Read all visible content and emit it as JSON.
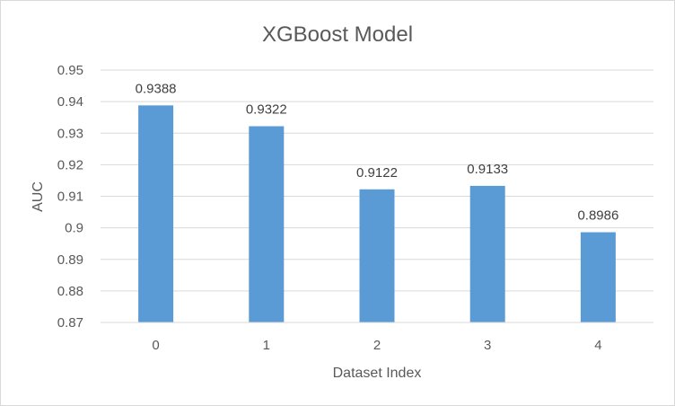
{
  "chart_data": {
    "type": "bar",
    "title": "XGBoost Model",
    "xlabel": "Dataset Index",
    "ylabel": "AUC",
    "categories": [
      "0",
      "1",
      "2",
      "3",
      "4"
    ],
    "values": [
      0.9388,
      0.9322,
      0.9122,
      0.9133,
      0.8986
    ],
    "data_labels": [
      "0.9388",
      "0.9322",
      "0.9122",
      "0.9133",
      "0.8986"
    ],
    "ylim": [
      0.87,
      0.95
    ],
    "yticks": [
      "0.87",
      "0.88",
      "0.89",
      "0.9",
      "0.91",
      "0.92",
      "0.93",
      "0.94",
      "0.95"
    ],
    "grid": true,
    "legend": "none",
    "bar_color": "#5b9bd5",
    "gridline_color": "#d9d9d9"
  }
}
